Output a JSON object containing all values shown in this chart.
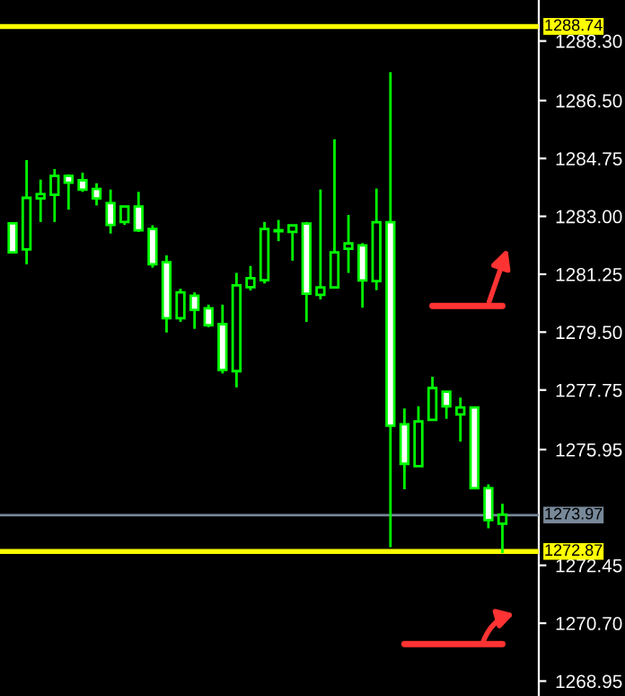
{
  "chart_data": {
    "type": "candlestick",
    "categories": [
      null,
      null,
      null,
      null,
      null,
      null,
      null,
      null,
      null,
      null,
      null,
      null,
      null,
      null,
      null,
      null,
      null,
      null,
      null,
      null,
      null,
      null,
      null,
      null,
      null,
      null,
      null,
      null,
      null,
      null,
      null,
      null,
      null,
      null,
      null,
      null
    ],
    "ohlc": [
      [
        1282.79,
        1282.79,
        1281.91,
        1281.91
      ],
      [
        1282.0,
        1284.7,
        1281.55,
        1283.56
      ],
      [
        1283.54,
        1284.11,
        1282.83,
        1283.67
      ],
      [
        1283.65,
        1284.43,
        1282.83,
        1284.22
      ],
      [
        1284.22,
        1284.27,
        1283.2,
        1284.02
      ],
      [
        1284.09,
        1284.32,
        1283.74,
        1283.81
      ],
      [
        1283.83,
        1284.0,
        1283.33,
        1283.54
      ],
      [
        1283.4,
        1283.81,
        1282.48,
        1282.74
      ],
      [
        1282.83,
        1283.3,
        1282.74,
        1283.3
      ],
      [
        1283.3,
        1283.74,
        1282.53,
        1282.58
      ],
      [
        1282.62,
        1282.73,
        1281.45,
        1281.55
      ],
      [
        1281.61,
        1281.82,
        1279.49,
        1279.92
      ],
      [
        1279.92,
        1280.81,
        1279.81,
        1280.7
      ],
      [
        1280.6,
        1280.7,
        1279.6,
        1280.17
      ],
      [
        1280.22,
        1280.33,
        1279.65,
        1279.71
      ],
      [
        1279.74,
        1280.33,
        1278.25,
        1278.36
      ],
      [
        1278.32,
        1281.29,
        1277.83,
        1280.91
      ],
      [
        1280.86,
        1281.5,
        1280.76,
        1281.13
      ],
      [
        1281.07,
        1282.83,
        1280.97,
        1282.62
      ],
      [
        1282.55,
        1282.89,
        1282.25,
        1282.58
      ],
      [
        1282.53,
        1282.73,
        1281.66,
        1282.73
      ],
      [
        1282.78,
        1282.83,
        1279.81,
        1280.66
      ],
      [
        1280.63,
        1283.81,
        1280.49,
        1280.85
      ],
      [
        1280.85,
        1285.33,
        1280.85,
        1281.91
      ],
      [
        1282.02,
        1283.04,
        1281.29,
        1282.18
      ],
      [
        1282.12,
        1282.19,
        1280.24,
        1281.06
      ],
      [
        1281.04,
        1283.84,
        1280.77,
        1282.82
      ],
      [
        1282.82,
        1287.36,
        1273.0,
        1276.67
      ],
      [
        1276.71,
        1277.19,
        1274.75,
        1275.52
      ],
      [
        1275.45,
        1277.26,
        1275.45,
        1276.8
      ],
      [
        1276.85,
        1278.15,
        1276.85,
        1277.81
      ],
      [
        1277.7,
        1277.7,
        1276.88,
        1277.26
      ],
      [
        1277.01,
        1277.52,
        1276.19,
        1277.22
      ],
      [
        1277.22,
        1277.22,
        1274.78,
        1274.78
      ],
      [
        1274.78,
        1274.9,
        1273.57,
        1273.82
      ],
      [
        1273.71,
        1274.31,
        1272.82,
        1273.98
      ]
    ],
    "color": "#00ff00",
    "colors": [
      "#ffffff",
      "#000000",
      "#000000",
      "#000000",
      "#ffffff",
      "#ffffff",
      "#ffffff",
      "#ffffff",
      "#000000",
      "#ffffff",
      "#ffffff",
      "#ffffff",
      "#000000",
      "#ffffff",
      "#ffffff",
      "#ffffff",
      "#000000",
      "#000000",
      "#000000",
      "#000000",
      "#000000",
      "#ffffff",
      "#000000",
      "#000000",
      "#000000",
      "#ffffff",
      "#000000",
      "#ffffff",
      "#ffffff",
      "#000000",
      "#000000",
      "#ffffff",
      "#000000",
      "#ffffff",
      "#ffffff",
      "#000000"
    ],
    "series": [
      {
        "type": "line",
        "color": "#ff3333",
        "values": [
          null,
          null,
          null,
          null,
          null,
          null,
          null,
          null,
          null,
          null,
          null,
          null,
          null,
          null,
          null,
          null,
          null,
          null,
          null,
          null,
          null,
          null,
          null,
          null,
          null,
          null,
          null,
          null,
          null,
          null,
          1280.29,
          1280.29,
          1280.29,
          1280.29,
          1280.29,
          1280.29
        ]
      },
      {
        "type": "line",
        "color": "#ff3333",
        "values": [
          null,
          null,
          null,
          null,
          null,
          null,
          null,
          null,
          null,
          null,
          null,
          null,
          null,
          null,
          null,
          null,
          null,
          null,
          null,
          null,
          null,
          null,
          null,
          null,
          null,
          null,
          null,
          null,
          1270.07,
          1270.07,
          1270.07,
          1270.07,
          1270.07,
          1270.07,
          1270.07,
          1270.07
        ]
      }
    ],
    "ylim": [
      1268.5,
      1289.54
    ],
    "yticks": [
      {
        "value": 1288.3,
        "label": "1288.30"
      },
      {
        "value": 1286.5,
        "label": "1286.50"
      },
      1284.75,
      {
        "value": 1283.0,
        "label": "1283.00"
      },
      1281.25,
      {
        "value": 1279.5,
        "label": "1279.50"
      },
      1277.75,
      1275.95,
      1272.45,
      {
        "value": 1270.7,
        "label": "1270.70"
      },
      1268.95
    ],
    "ref_lines": [
      {
        "axis": "y",
        "value": 1288.74,
        "label": "1288.74",
        "color": "#ffff00"
      },
      {
        "axis": "y",
        "value": 1273.97,
        "label": "1273.97",
        "color": "#778899"
      },
      {
        "axis": "y",
        "value": 1272.87,
        "label": "1272.87",
        "color": "#ffff00"
      }
    ],
    "tick_labels": "y",
    "grid": false,
    "legend": false
  }
}
